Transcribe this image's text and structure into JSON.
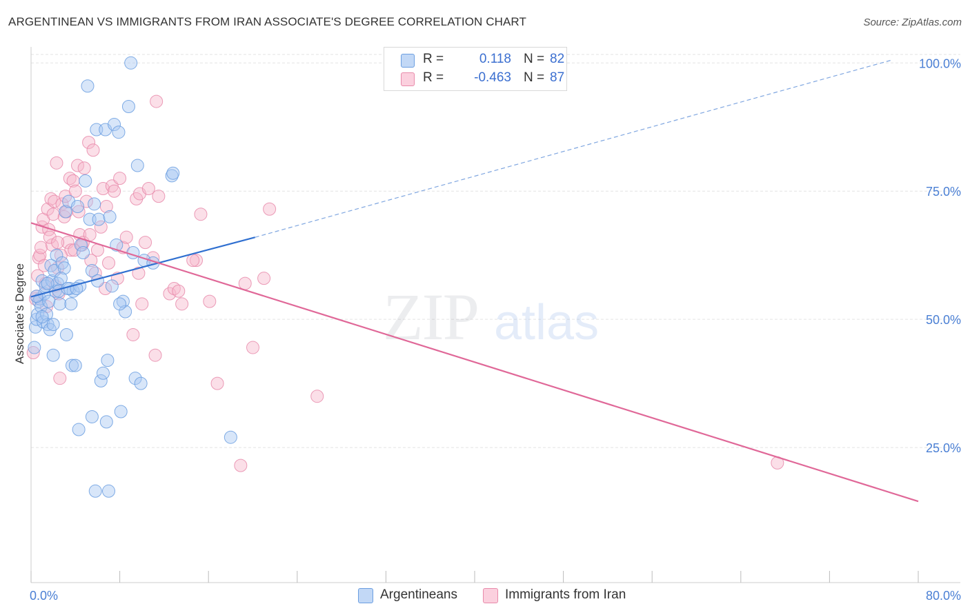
{
  "header": {
    "title": "ARGENTINEAN VS IMMIGRANTS FROM IRAN ASSOCIATE'S DEGREE CORRELATION CHART",
    "source": "Source: ZipAtlas.com"
  },
  "legend": {
    "series": [
      {
        "name": "Argentineans",
        "r_label": "R =",
        "r_value": "0.118",
        "n_label": "N =",
        "n_value": "82",
        "color": "#a9c7f2",
        "stroke": "#6a9de0"
      },
      {
        "name": "Immigrants from Iran",
        "r_label": "R =",
        "r_value": "-0.463",
        "n_label": "N =",
        "n_value": "87",
        "color": "#f7b9cd",
        "stroke": "#e88aaa"
      }
    ]
  },
  "watermark": {
    "zip": "ZIP",
    "atlas": "atlas"
  },
  "colors": {
    "blue_line": "#2f6fd0",
    "pink_line": "#e06898",
    "grid": "#e3e3e3",
    "tick_text": "#4a7fd4"
  },
  "chart_data": {
    "type": "scatter",
    "title": "ARGENTINEAN VS IMMIGRANTS FROM IRAN ASSOCIATE'S DEGREE CORRELATION CHART",
    "xlabel": "",
    "ylabel": "Associate's Degree",
    "xlim": [
      0,
      80
    ],
    "ylim": [
      0,
      103
    ],
    "x_tick_labels": [
      "0.0%",
      "80.0%"
    ],
    "y_ticks": [
      25,
      50,
      75,
      100
    ],
    "y_tick_labels": [
      "25.0%",
      "50.0%",
      "75.0%",
      "100.0%"
    ],
    "grid": true,
    "legend_position": "top-center",
    "series": [
      {
        "name": "Argentineans",
        "r": 0.118,
        "n": 82,
        "trend": {
          "x": [
            0,
            20.2
          ],
          "y": [
            54.4,
            66.0
          ],
          "dashed_extension": {
            "x": [
              20.2,
              77.5
            ],
            "y": [
              66.0,
              100.5
            ]
          }
        },
        "points": [
          [
            0.3,
            44.5
          ],
          [
            0.4,
            48.5
          ],
          [
            0.5,
            50.0
          ],
          [
            0.6,
            51.0
          ],
          [
            0.7,
            53.5
          ],
          [
            0.8,
            54.0
          ],
          [
            0.9,
            52.5
          ],
          [
            1.0,
            57.5
          ],
          [
            1.1,
            49.5
          ],
          [
            1.2,
            55.0
          ],
          [
            1.3,
            56.5
          ],
          [
            1.4,
            51.0
          ],
          [
            1.5,
            49.0
          ],
          [
            1.6,
            53.5
          ],
          [
            1.7,
            48.0
          ],
          [
            1.8,
            60.5
          ],
          [
            1.9,
            57.5
          ],
          [
            2.0,
            49.0
          ],
          [
            2.1,
            59.5
          ],
          [
            2.2,
            55.5
          ],
          [
            2.3,
            62.5
          ],
          [
            2.4,
            57.0
          ],
          [
            2.5,
            55.5
          ],
          [
            2.6,
            53.0
          ],
          [
            2.8,
            61.0
          ],
          [
            3.0,
            60.0
          ],
          [
            3.1,
            71.0
          ],
          [
            3.2,
            47.0
          ],
          [
            3.4,
            73.0
          ],
          [
            3.5,
            56.0
          ],
          [
            3.7,
            41.0
          ],
          [
            3.8,
            55.5
          ],
          [
            4.0,
            41.0
          ],
          [
            4.2,
            72.0
          ],
          [
            4.4,
            56.5
          ],
          [
            4.5,
            64.5
          ],
          [
            4.7,
            63.0
          ],
          [
            4.9,
            77.0
          ],
          [
            5.1,
            95.5
          ],
          [
            5.3,
            69.5
          ],
          [
            5.5,
            59.5
          ],
          [
            5.7,
            72.5
          ],
          [
            5.9,
            87.0
          ],
          [
            6.1,
            69.5
          ],
          [
            6.3,
            38.0
          ],
          [
            6.5,
            39.5
          ],
          [
            6.7,
            87.0
          ],
          [
            6.9,
            42.0
          ],
          [
            7.1,
            70.0
          ],
          [
            7.3,
            56.5
          ],
          [
            7.5,
            88.0
          ],
          [
            7.7,
            64.5
          ],
          [
            7.9,
            86.5
          ],
          [
            8.1,
            32.0
          ],
          [
            8.3,
            53.5
          ],
          [
            8.5,
            51.5
          ],
          [
            8.8,
            91.5
          ],
          [
            9.2,
            63.0
          ],
          [
            9.4,
            38.5
          ],
          [
            9.6,
            80.0
          ],
          [
            9.9,
            37.5
          ],
          [
            10.2,
            61.5
          ],
          [
            11.0,
            61.0
          ],
          [
            12.7,
            78.0
          ],
          [
            12.8,
            78.5
          ],
          [
            18.0,
            27.0
          ],
          [
            9.0,
            100.0
          ],
          [
            5.5,
            31.0
          ],
          [
            6.8,
            30.0
          ],
          [
            5.8,
            16.5
          ],
          [
            7.0,
            16.5
          ],
          [
            4.3,
            28.5
          ],
          [
            2.0,
            43.0
          ],
          [
            1.0,
            50.5
          ],
          [
            0.5,
            54.5
          ],
          [
            1.5,
            57.0
          ],
          [
            2.7,
            58.0
          ],
          [
            3.3,
            56.0
          ],
          [
            4.1,
            56.0
          ],
          [
            6.0,
            57.5
          ],
          [
            8.0,
            53.0
          ],
          [
            3.6,
            53.0
          ]
        ]
      },
      {
        "name": "Immigrants from Iran",
        "r": -0.463,
        "n": 87,
        "trend": {
          "x": [
            0,
            80
          ],
          "y": [
            68.8,
            14.5
          ]
        },
        "points": [
          [
            0.2,
            43.5
          ],
          [
            0.4,
            54.0
          ],
          [
            0.6,
            58.5
          ],
          [
            0.7,
            62.0
          ],
          [
            0.8,
            62.5
          ],
          [
            0.9,
            64.0
          ],
          [
            1.0,
            68.0
          ],
          [
            1.1,
            69.5
          ],
          [
            1.2,
            60.5
          ],
          [
            1.3,
            57.0
          ],
          [
            1.4,
            52.5
          ],
          [
            1.5,
            71.5
          ],
          [
            1.6,
            67.5
          ],
          [
            1.8,
            73.5
          ],
          [
            1.9,
            64.5
          ],
          [
            2.0,
            70.5
          ],
          [
            2.1,
            73.0
          ],
          [
            2.2,
            56.5
          ],
          [
            2.3,
            80.5
          ],
          [
            2.4,
            60.0
          ],
          [
            2.5,
            55.0
          ],
          [
            2.6,
            38.5
          ],
          [
            2.8,
            72.5
          ],
          [
            3.0,
            70.0
          ],
          [
            3.1,
            74.0
          ],
          [
            3.2,
            71.0
          ],
          [
            3.3,
            65.0
          ],
          [
            3.5,
            77.5
          ],
          [
            3.6,
            63.5
          ],
          [
            3.8,
            77.0
          ],
          [
            4.0,
            75.0
          ],
          [
            4.2,
            80.0
          ],
          [
            4.4,
            66.5
          ],
          [
            4.6,
            64.5
          ],
          [
            4.7,
            65.0
          ],
          [
            4.8,
            79.5
          ],
          [
            5.0,
            73.0
          ],
          [
            5.2,
            84.5
          ],
          [
            5.4,
            61.5
          ],
          [
            5.6,
            83.0
          ],
          [
            5.8,
            59.0
          ],
          [
            6.0,
            63.5
          ],
          [
            6.3,
            68.0
          ],
          [
            6.5,
            75.5
          ],
          [
            6.8,
            72.0
          ],
          [
            7.0,
            61.0
          ],
          [
            7.3,
            76.0
          ],
          [
            7.5,
            75.0
          ],
          [
            7.8,
            58.0
          ],
          [
            8.0,
            77.5
          ],
          [
            8.3,
            64.0
          ],
          [
            8.6,
            66.0
          ],
          [
            9.2,
            47.0
          ],
          [
            9.5,
            73.5
          ],
          [
            9.8,
            74.5
          ],
          [
            10.0,
            53.0
          ],
          [
            10.3,
            65.0
          ],
          [
            10.6,
            75.5
          ],
          [
            11.0,
            62.0
          ],
          [
            11.2,
            43.0
          ],
          [
            11.5,
            74.0
          ],
          [
            12.5,
            55.0
          ],
          [
            12.9,
            56.0
          ],
          [
            13.3,
            55.5
          ],
          [
            13.6,
            53.0
          ],
          [
            14.9,
            61.5
          ],
          [
            15.3,
            70.5
          ],
          [
            16.1,
            53.5
          ],
          [
            16.8,
            37.5
          ],
          [
            18.9,
            21.5
          ],
          [
            19.3,
            57.0
          ],
          [
            20.0,
            44.5
          ],
          [
            21.0,
            58.0
          ],
          [
            21.5,
            71.5
          ],
          [
            25.8,
            35.0
          ],
          [
            67.3,
            22.0
          ],
          [
            11.3,
            92.5
          ],
          [
            3.9,
            63.5
          ],
          [
            2.7,
            62.5
          ],
          [
            1.7,
            66.0
          ],
          [
            0.5,
            54.5
          ],
          [
            5.3,
            66.5
          ],
          [
            6.7,
            56.0
          ],
          [
            14.6,
            61.5
          ],
          [
            9.7,
            59.0
          ],
          [
            4.3,
            71.0
          ],
          [
            2.4,
            65.0
          ]
        ]
      }
    ]
  }
}
